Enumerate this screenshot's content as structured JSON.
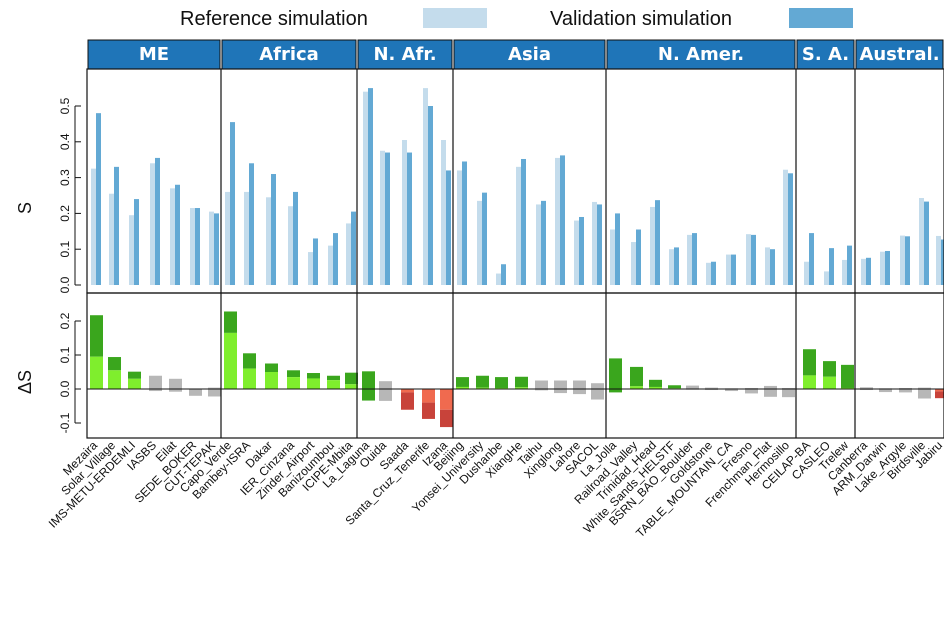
{
  "legend": {
    "reference_label": "Reference simulation",
    "validation_label": "Validation simulation"
  },
  "colors": {
    "reference": "#c4dcec",
    "validation": "#63a9d4",
    "header": "#1f75b8",
    "header_text": "#ffffff",
    "positive_light": "#7fee2d",
    "positive_dark": "#3aa61d",
    "negative_light": "#f06a4f",
    "negative_dark": "#c8433a",
    "neutral_light": "#d1d1d1",
    "neutral_dark": "#b7b7b7"
  },
  "chart_data": {
    "type": "bar",
    "panels": [
      {
        "name": "ME",
        "stations": [
          {
            "name": "Mezaira",
            "reference": 0.325,
            "validation": 0.48,
            "delta_low": 0.095,
            "delta_high": 0.217
          },
          {
            "name": "Solar_Village",
            "reference": 0.255,
            "validation": 0.33,
            "delta_low": 0.055,
            "delta_high": 0.094
          },
          {
            "name": "IMS-METU-ERDEMLI",
            "reference": 0.195,
            "validation": 0.24,
            "delta_low": 0.03,
            "delta_high": 0.051
          },
          {
            "name": "IASBS",
            "reference": 0.34,
            "validation": 0.355,
            "delta_low": -0.006,
            "delta_high": 0.039
          },
          {
            "name": "Eilat",
            "reference": 0.27,
            "validation": 0.28,
            "delta_low": -0.008,
            "delta_high": 0.03
          },
          {
            "name": "SEDE_BOKER",
            "reference": 0.215,
            "validation": 0.215,
            "delta_low": -0.02,
            "delta_high": 0.001
          },
          {
            "name": "CUT-TEPAK",
            "reference": 0.205,
            "validation": 0.2,
            "delta_low": -0.022,
            "delta_high": 0.004
          }
        ]
      },
      {
        "name": "Africa",
        "stations": [
          {
            "name": "Capo_Verde",
            "reference": 0.26,
            "validation": 0.455,
            "delta_low": 0.165,
            "delta_high": 0.228
          },
          {
            "name": "Bambey-ISRA",
            "reference": 0.26,
            "validation": 0.34,
            "delta_low": 0.06,
            "delta_high": 0.105
          },
          {
            "name": "Dakar",
            "reference": 0.245,
            "validation": 0.31,
            "delta_low": 0.05,
            "delta_high": 0.075
          },
          {
            "name": "IER_Cinzana",
            "reference": 0.22,
            "validation": 0.26,
            "delta_low": 0.035,
            "delta_high": 0.055
          },
          {
            "name": "Zinder_Airport",
            "reference": 0.092,
            "validation": 0.13,
            "delta_low": 0.031,
            "delta_high": 0.047
          },
          {
            "name": "Banizoumbou",
            "reference": 0.11,
            "validation": 0.145,
            "delta_low": 0.026,
            "delta_high": 0.039
          },
          {
            "name": "ICIPE-Mbita",
            "reference": 0.172,
            "validation": 0.205,
            "delta_low": 0.014,
            "delta_high": 0.048
          }
        ]
      },
      {
        "name": "N. Afr.",
        "stations": [
          {
            "name": "La_Laguna",
            "reference": 0.54,
            "validation": 0.55,
            "delta_low": -0.034,
            "delta_high": 0.052
          },
          {
            "name": "Ouida",
            "reference": 0.375,
            "validation": 0.37,
            "delta_low": -0.035,
            "delta_high": 0.023
          },
          {
            "name": "Saada",
            "reference": 0.405,
            "validation": 0.37,
            "delta_low": -0.061,
            "delta_high": -0.01
          },
          {
            "name": "Santa_Cruz_Tenerife",
            "reference": 0.55,
            "validation": 0.5,
            "delta_low": -0.088,
            "delta_high": -0.04
          },
          {
            "name": "Izana",
            "reference": 0.405,
            "validation": 0.32,
            "delta_low": -0.112,
            "delta_high": -0.061
          }
        ]
      },
      {
        "name": "Asia",
        "stations": [
          {
            "name": "Beijing",
            "reference": 0.32,
            "validation": 0.345,
            "delta_low": 0.006,
            "delta_high": 0.035
          },
          {
            "name": "Yonsei_University",
            "reference": 0.235,
            "validation": 0.258,
            "delta_low": 0.004,
            "delta_high": 0.039
          },
          {
            "name": "Dushanbe",
            "reference": 0.032,
            "validation": 0.058,
            "delta_low": 0.003,
            "delta_high": 0.035
          },
          {
            "name": "XiangHe",
            "reference": 0.33,
            "validation": 0.352,
            "delta_low": 0.005,
            "delta_high": 0.036
          },
          {
            "name": "Taihu",
            "reference": 0.225,
            "validation": 0.235,
            "delta_low": -0.004,
            "delta_high": 0.025
          },
          {
            "name": "Xinglong",
            "reference": 0.355,
            "validation": 0.362,
            "delta_low": -0.012,
            "delta_high": 0.025
          },
          {
            "name": "Lahore",
            "reference": 0.18,
            "validation": 0.19,
            "delta_low": -0.015,
            "delta_high": 0.025
          },
          {
            "name": "SACOL",
            "reference": 0.232,
            "validation": 0.225,
            "delta_low": -0.031,
            "delta_high": 0.017
          }
        ]
      },
      {
        "name": "N. Amer.",
        "stations": [
          {
            "name": "La_Jolla",
            "reference": 0.155,
            "validation": 0.2,
            "delta_low": -0.01,
            "delta_high": 0.09
          },
          {
            "name": "Railroad_Valley",
            "reference": 0.12,
            "validation": 0.155,
            "delta_low": 0.008,
            "delta_high": 0.065
          },
          {
            "name": "Trinidad_Head",
            "reference": 0.218,
            "validation": 0.237,
            "delta_low": 0.006,
            "delta_high": 0.027
          },
          {
            "name": "White_Sands_HELSTF",
            "reference": 0.1,
            "validation": 0.105,
            "delta_low": 0.002,
            "delta_high": 0.011
          },
          {
            "name": "BSRN_BAO_Boulder",
            "reference": 0.14,
            "validation": 0.145,
            "delta_low": -0.002,
            "delta_high": 0.01
          },
          {
            "name": "Goldstone",
            "reference": 0.062,
            "validation": 0.065,
            "delta_low": -0.003,
            "delta_high": 0.004
          },
          {
            "name": "TABLE_MOUNTAIN_CA",
            "reference": 0.085,
            "validation": 0.085,
            "delta_low": -0.006,
            "delta_high": 0.002
          },
          {
            "name": "Fresno",
            "reference": 0.142,
            "validation": 0.14,
            "delta_low": -0.013,
            "delta_high": 0.003
          },
          {
            "name": "Frenchman_Flat",
            "reference": 0.105,
            "validation": 0.1,
            "delta_low": -0.023,
            "delta_high": 0.009
          },
          {
            "name": "Hermosillo",
            "reference": 0.322,
            "validation": 0.312,
            "delta_low": -0.024,
            "delta_high": 0.003
          }
        ]
      },
      {
        "name": "S. A.",
        "stations": [
          {
            "name": "CEILAP-BA",
            "reference": 0.065,
            "validation": 0.145,
            "delta_low": 0.04,
            "delta_high": 0.117
          },
          {
            "name": "CASLEO",
            "reference": 0.038,
            "validation": 0.103,
            "delta_low": 0.036,
            "delta_high": 0.082
          },
          {
            "name": "Trelew",
            "reference": 0.07,
            "validation": 0.11,
            "delta_low": 0.003,
            "delta_high": 0.071
          }
        ]
      },
      {
        "name": "Austral.",
        "stations": [
          {
            "name": "Canberra",
            "reference": 0.073,
            "validation": 0.076,
            "delta_low": -0.003,
            "delta_high": 0.005
          },
          {
            "name": "ARM_Darwin",
            "reference": 0.093,
            "validation": 0.095,
            "delta_low": -0.009,
            "delta_high": 0.002
          },
          {
            "name": "Lake_Argyle",
            "reference": 0.138,
            "validation": 0.136,
            "delta_low": -0.01,
            "delta_high": 0.003
          },
          {
            "name": "Birdsville",
            "reference": 0.243,
            "validation": 0.233,
            "delta_low": -0.028,
            "delta_high": 0.004
          },
          {
            "name": "Jabiru",
            "reference": 0.137,
            "validation": 0.127,
            "delta_low": -0.027,
            "delta_high": -0.007
          }
        ]
      }
    ],
    "top_axis": {
      "label": "S",
      "ylim": [
        0,
        0.6
      ],
      "ticks": [
        0.0,
        0.1,
        0.2,
        0.3,
        0.4,
        0.5
      ],
      "tick_labels": [
        "0.0",
        "0.1",
        "0.2",
        "0.3",
        "0.4",
        "0.5"
      ]
    },
    "bottom_axis": {
      "label": "ΔS",
      "ylim": [
        -0.15,
        0.25
      ],
      "ticks": [
        -0.1,
        0.0,
        0.1,
        0.2
      ],
      "tick_labels": [
        "-0.1",
        "0.0",
        "0.1",
        "0.2"
      ]
    }
  }
}
